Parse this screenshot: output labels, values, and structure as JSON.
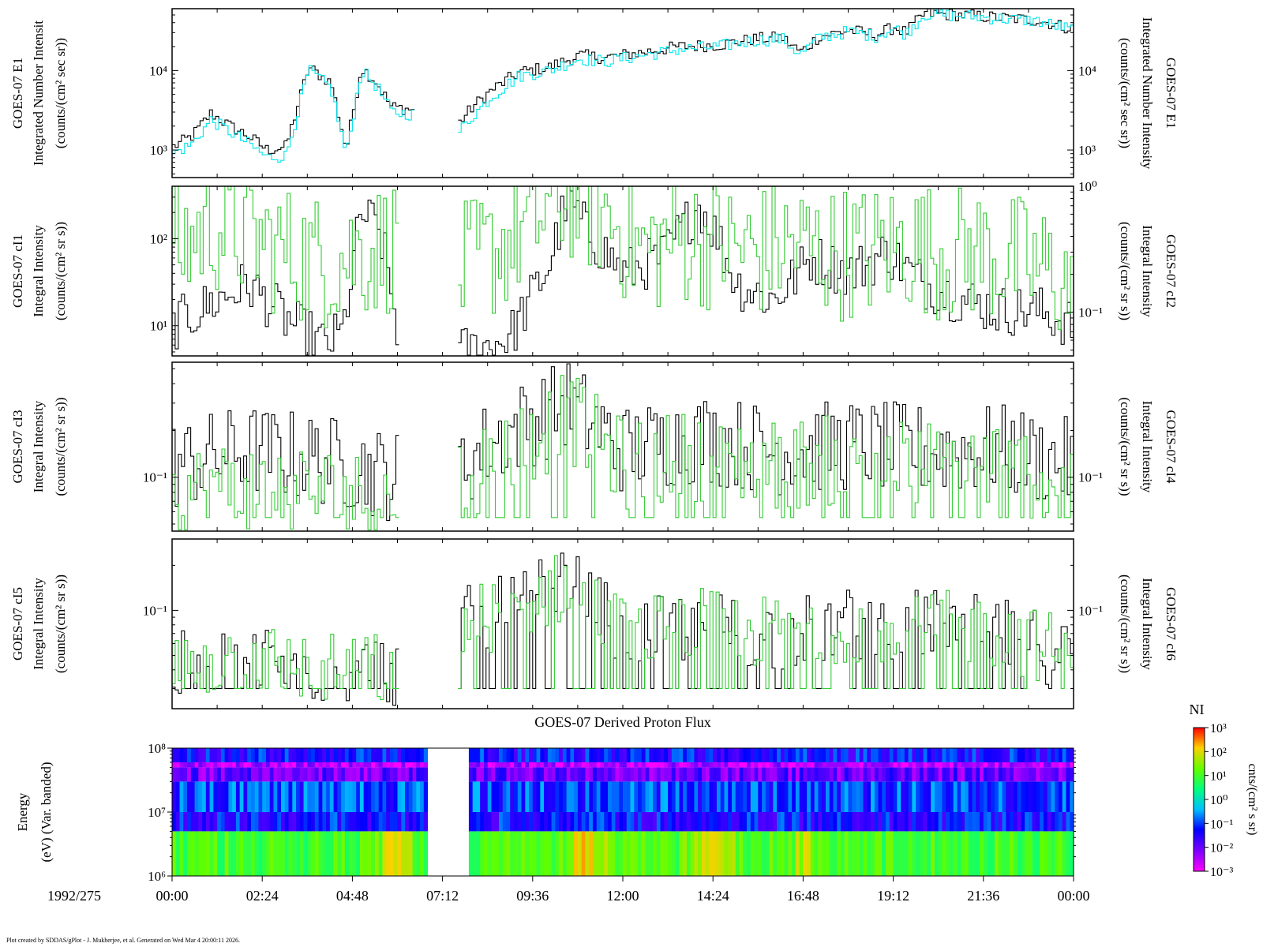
{
  "footer": "Plot created by SDDAS/gPlot - J. Mukherjee, et al.  Generated on Wed Mar 4 20:00:11 2026.",
  "date_label": "1992/275",
  "spectrogram_title": "GOES-07 Derived Proton Flux",
  "colorbar": {
    "title": "NI",
    "unit_label": "cnts/(cm² s sr)",
    "tick_labels": [
      "10³",
      "10²",
      "10¹",
      "10⁰",
      "10⁻¹",
      "10⁻²",
      "10⁻³"
    ]
  },
  "colors": {
    "black_series": "#000000",
    "cyan_series": "#00e5ee",
    "green_series": "#33cc33"
  },
  "chart_data": [
    {
      "type": "line",
      "panel": "E1",
      "left_label": [
        "GOES-07 E1",
        "Integrated Number Intensit",
        "(counts/(cm² sec sr))"
      ],
      "right_label": [
        "GOES-07 E1",
        "Integrated Number Intensity",
        "(counts/(cm² sec sr))"
      ],
      "yscale": "log",
      "ylim": [
        450,
        60000
      ],
      "left_ticks": [
        {
          "label": "10⁴",
          "value": 10000
        },
        {
          "label": "10³",
          "value": 1000
        }
      ],
      "right_ticks": [
        {
          "label": "10⁴",
          "value": 10000
        },
        {
          "label": "10³",
          "value": 1000
        }
      ],
      "series": [
        {
          "color": "black",
          "x": [
            0,
            0.5,
            1,
            1.5,
            2,
            2.5,
            3,
            3.6,
            4.2,
            4.6,
            5.0,
            5.4,
            5.8,
            6.4,
            6.8,
            7.6,
            8.0,
            8.5,
            9.2,
            10.0,
            10.8,
            11.5,
            12.5,
            13.5,
            14.5,
            15.5,
            16.2,
            16.7,
            17.2,
            18.0,
            18.7,
            19.2,
            19.5,
            20.0,
            21.0,
            22.0,
            23.0,
            24.0
          ],
          "y": [
            1100,
            1500,
            2900,
            2000,
            1500,
            1000,
            1100,
            11000,
            7000,
            1000,
            11000,
            7200,
            3500,
            3200,
            null,
            2200,
            3600,
            5800,
            9500,
            11000,
            15500,
            14500,
            17000,
            20000,
            21000,
            25000,
            26000,
            17000,
            27000,
            32000,
            28000,
            35000,
            30000,
            52000,
            50000,
            46000,
            43000,
            33000
          ]
        },
        {
          "color": "cyan",
          "x": [
            0,
            0.5,
            1,
            1.5,
            2,
            2.5,
            3,
            3.6,
            4.2,
            4.6,
            5.0,
            5.4,
            5.8,
            6.4,
            6.8,
            7.6,
            8.0,
            8.5,
            9.2,
            10.0,
            10.8,
            11.5,
            12.5,
            13.5,
            14.5,
            15.5,
            16.2,
            16.7,
            17.2,
            18.0,
            18.7,
            19.2,
            19.5,
            20.0,
            21.0,
            22.0,
            23.0,
            24.0
          ],
          "y": [
            900,
            1200,
            2400,
            1700,
            1200,
            800,
            850,
            10000,
            6000,
            850,
            10000,
            6500,
            3000,
            2800,
            null,
            1700,
            2800,
            4800,
            8500,
            10000,
            14000,
            13000,
            15500,
            18500,
            20000,
            24000,
            25000,
            16000,
            26000,
            31000,
            27000,
            34000,
            29000,
            51000,
            49000,
            45000,
            42000,
            32000
          ]
        }
      ]
    },
    {
      "type": "line",
      "panel": "cI1/cI2",
      "left_label": [
        "GOES-07 cI1",
        "Integral Intensity",
        "(counts/(cm² sr s))"
      ],
      "right_label": [
        "GOES-07 cI2",
        "Integral Intensity",
        "(counts/(cm² sr s))"
      ],
      "yscale": "log",
      "left_ticks": [
        {
          "label": "10²",
          "value": 100
        },
        {
          "label": "10¹",
          "value": 10
        }
      ],
      "right_ticks": [
        {
          "label": "10⁰",
          "value": 1
        },
        {
          "label": "10⁻¹",
          "value": 0.1
        }
      ],
      "series": [
        {
          "color": "black",
          "axis": "left",
          "x": [
            0,
            1,
            2,
            3,
            4,
            4.5,
            5,
            5.5,
            6,
            6.8,
            7.6,
            8.5,
            9,
            10,
            10.5,
            11,
            12,
            13,
            14,
            14.5,
            15,
            16,
            17,
            18,
            19,
            20,
            21,
            22,
            23,
            24
          ],
          "y": [
            10,
            18,
            30,
            12,
            6,
            8,
            200,
            120,
            8,
            null,
            5,
            6,
            8,
            50,
            300,
            120,
            40,
            60,
            250,
            100,
            30,
            20,
            60,
            40,
            70,
            30,
            20,
            15,
            15,
            10
          ]
        },
        {
          "color": "green",
          "axis": "right",
          "x": [
            0,
            1,
            2,
            3,
            4,
            5,
            6,
            6.8,
            7.6,
            8.5,
            9.5,
            10.5,
            11.5,
            12.5,
            13.5,
            14.5,
            15.5,
            16.5,
            17.5,
            18.5,
            19.5,
            20.5,
            21.5,
            22.5,
            23.5,
            24
          ],
          "y": [
            0.3,
            0.5,
            0.4,
            0.3,
            0.25,
            0.3,
            0.35,
            null,
            0.2,
            0.3,
            0.5,
            0.9,
            0.6,
            0.3,
            0.4,
            0.35,
            0.3,
            0.35,
            0.3,
            0.3,
            0.35,
            0.3,
            0.3,
            0.25,
            0.2,
            0.15
          ]
        }
      ]
    },
    {
      "type": "line",
      "panel": "cI3/cI4",
      "left_label": [
        "GOES-07 cI3",
        "Integral Intensity",
        "(counts/(cm² sr s))"
      ],
      "right_label": [
        "GOES-07 cI4",
        "Integral Intensity",
        "(counts/(cm² sr s))"
      ],
      "yscale": "log",
      "left_ticks": [
        {
          "label": "10⁻¹",
          "value": 0.1
        }
      ],
      "right_ticks": [
        {
          "label": "10⁻¹",
          "value": 0.1
        }
      ],
      "series": [
        {
          "color": "black",
          "axis": "left",
          "x": [
            0,
            2,
            4,
            6,
            6.8,
            7.6,
            9,
            10.5,
            12,
            14,
            16,
            18,
            20,
            22,
            24
          ],
          "y": [
            0.12,
            0.15,
            0.13,
            0.1,
            null,
            0.12,
            0.2,
            0.3,
            0.15,
            0.18,
            0.15,
            0.16,
            0.15,
            0.15,
            0.12
          ]
        },
        {
          "color": "green",
          "axis": "right",
          "x": [
            0,
            2,
            4,
            6,
            6.8,
            7.6,
            9,
            10.5,
            12,
            14,
            16,
            18,
            20,
            22,
            24
          ],
          "y": [
            0.08,
            0.09,
            0.08,
            0.07,
            null,
            0.1,
            0.15,
            0.25,
            0.12,
            0.14,
            0.12,
            0.13,
            0.12,
            0.12,
            0.09
          ]
        }
      ]
    },
    {
      "type": "line",
      "panel": "cI5/cI6",
      "left_label": [
        "GOES-07 cI5",
        "Integral Intensity",
        "(counts/(cm² sr s))"
      ],
      "right_label": [
        "GOES-07 cI6",
        "Integral Intensity",
        "(counts/(cm² sr s))"
      ],
      "yscale": "log",
      "left_ticks": [
        {
          "label": "10⁻¹",
          "value": 0.1
        }
      ],
      "right_ticks": [
        {
          "label": "10⁻¹",
          "value": 0.1
        }
      ],
      "series": [
        {
          "color": "black",
          "axis": "left",
          "x": [
            0,
            2,
            4,
            6,
            6.8,
            7.6,
            9,
            10.5,
            12,
            14,
            16,
            18,
            20,
            22,
            24
          ],
          "y": [
            0.04,
            0.05,
            0.04,
            0.04,
            null,
            0.08,
            0.1,
            0.15,
            0.07,
            0.08,
            0.07,
            0.08,
            0.08,
            0.07,
            0.05
          ]
        },
        {
          "color": "green",
          "axis": "right",
          "x": [
            0,
            2,
            4,
            6,
            6.8,
            7.6,
            9,
            10.5,
            12,
            14,
            16,
            18,
            20,
            22,
            24
          ],
          "y": [
            0.04,
            0.05,
            0.04,
            0.04,
            null,
            0.08,
            0.1,
            0.15,
            0.07,
            0.08,
            0.07,
            0.08,
            0.08,
            0.07,
            0.05
          ]
        }
      ]
    },
    {
      "type": "heatmap",
      "panel": "Derived Proton Flux",
      "title": "GOES-07 Derived Proton Flux",
      "ylabel": [
        "Energy",
        "(eV) (Var. banded)"
      ],
      "yscale": "log",
      "ylim": [
        1000000,
        100000000
      ],
      "left_ticks": [
        {
          "label": "10⁸",
          "value": 100000000
        },
        {
          "label": "10⁷",
          "value": 10000000
        },
        {
          "label": "10⁶",
          "value": 1000000
        }
      ],
      "data_gap_hours": [
        6.85,
        7.9
      ],
      "bands": [
        {
          "energy_range_eV": [
            1000000,
            5000000
          ],
          "typical_NI": 10
        },
        {
          "energy_range_eV": [
            5000000,
            10000000
          ],
          "typical_NI": 0.05
        },
        {
          "energy_range_eV": [
            10000000,
            30000000
          ],
          "typical_NI": 0.1
        },
        {
          "energy_range_eV": [
            30000000,
            50000000
          ],
          "typical_NI": 0.01
        },
        {
          "energy_range_eV": [
            50000000,
            60000000
          ],
          "typical_NI": 0.003
        },
        {
          "energy_range_eV": [
            60000000,
            100000000
          ],
          "typical_NI": 0.05
        }
      ]
    }
  ],
  "x_axis": {
    "tick_labels": [
      "00:00",
      "02:24",
      "04:48",
      "07:12",
      "09:36",
      "12:00",
      "14:24",
      "16:48",
      "19:12",
      "21:36",
      "00:00"
    ],
    "tick_hours": [
      0,
      2.4,
      4.8,
      7.2,
      9.6,
      12.0,
      14.4,
      16.8,
      19.2,
      21.6,
      24.0
    ]
  }
}
